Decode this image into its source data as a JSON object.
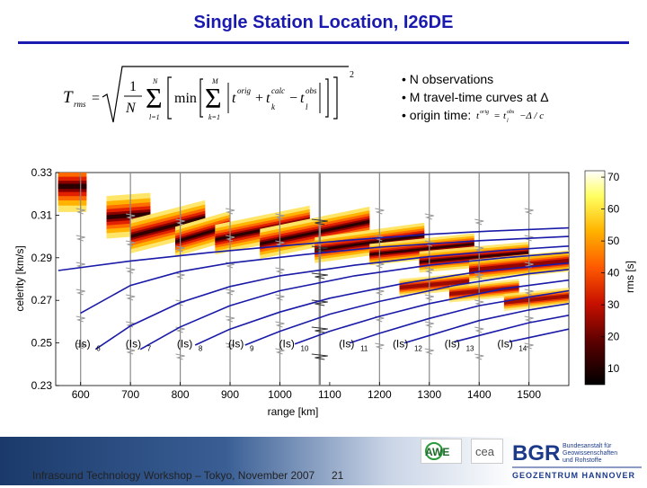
{
  "title": "Single Station Location, I26DE",
  "formula": {
    "lhs_main": "T",
    "lhs_sub": "rms",
    "equals": "=",
    "frac_num": "1",
    "frac_den": "N",
    "sum_outer_top": "N",
    "sum_outer_bottom": "l=1",
    "min_label": "min",
    "sum_inner_top": "M",
    "sum_inner_bottom": "k=1",
    "t": "t",
    "orig": "orig",
    "calc": "calc",
    "obs": "obs",
    "k": "k",
    "l": "l",
    "plus": "+",
    "minus": "−",
    "power": "2"
  },
  "bullets": [
    "• N observations",
    "• M travel-time curves at Δ",
    "• origin time: "
  ],
  "bullet_formula": {
    "t": "t",
    "orig": "orig",
    "eq": "=",
    "obs": "obs",
    "l": "l",
    "rest": "−Δ / c"
  },
  "chart_data": {
    "type": "heatmap",
    "xlabel": "range [km]",
    "ylabel": "celerity [km/s]",
    "xlim": [
      550,
      1580
    ],
    "ylim": [
      0.23,
      0.33
    ],
    "x_ticks": [
      600,
      700,
      800,
      900,
      1000,
      1100,
      1200,
      1300,
      1400,
      1500
    ],
    "y_ticks": [
      0.23,
      0.25,
      0.27,
      0.29,
      0.31,
      0.33
    ],
    "colorbar": {
      "label": "rms [s]",
      "ticks": [
        10,
        20,
        30,
        40,
        50,
        60,
        70
      ],
      "range": [
        5,
        72
      ]
    },
    "phase_labels": [
      {
        "base": "(Is)",
        "sub": "6",
        "x": 610
      },
      {
        "base": "(Is)",
        "sub": "7",
        "x": 712
      },
      {
        "base": "(Is)",
        "sub": "8",
        "x": 815
      },
      {
        "base": "(Is)",
        "sub": "9",
        "x": 918
      },
      {
        "base": "(Is)",
        "sub": "10",
        "x": 1020
      },
      {
        "base": "(Is)",
        "sub": "11",
        "x": 1140
      },
      {
        "base": "(Is)",
        "sub": "12",
        "x": 1248
      },
      {
        "base": "(Is)",
        "sub": "13",
        "x": 1352
      },
      {
        "base": "(Is)",
        "sub": "14",
        "x": 1458
      }
    ],
    "label_y": 0.248,
    "blue_curves": [
      {
        "x": [
          555,
          700,
          860,
          1000,
          1150,
          1300,
          1420,
          1580
        ],
        "y": [
          0.284,
          0.2885,
          0.2925,
          0.2955,
          0.2985,
          0.301,
          0.3025,
          0.304
        ]
      },
      {
        "x": [
          600,
          700,
          800,
          900,
          1050,
          1200,
          1400,
          1580
        ],
        "y": [
          0.264,
          0.277,
          0.2835,
          0.2875,
          0.2915,
          0.295,
          0.298,
          0.3
        ]
      },
      {
        "x": [
          630,
          700,
          800,
          900,
          1000,
          1150,
          1300,
          1450,
          1580
        ],
        "y": [
          0.247,
          0.258,
          0.269,
          0.2765,
          0.2815,
          0.2865,
          0.2905,
          0.2935,
          0.2955
        ]
      },
      {
        "x": [
          720,
          800,
          900,
          1000,
          1150,
          1300,
          1450,
          1580
        ],
        "y": [
          0.247,
          0.2575,
          0.2675,
          0.2745,
          0.2815,
          0.2865,
          0.29,
          0.2925
        ]
      },
      {
        "x": [
          830,
          900,
          1000,
          1100,
          1250,
          1400,
          1580
        ],
        "y": [
          0.249,
          0.2565,
          0.2645,
          0.271,
          0.278,
          0.2835,
          0.2875
        ]
      },
      {
        "x": [
          930,
          1000,
          1100,
          1200,
          1350,
          1500,
          1580
        ],
        "y": [
          0.249,
          0.2555,
          0.2635,
          0.2695,
          0.277,
          0.2825,
          0.2845
        ]
      },
      {
        "x": [
          1030,
          1100,
          1200,
          1300,
          1450,
          1580
        ],
        "y": [
          0.2495,
          0.2555,
          0.2625,
          0.2685,
          0.2755,
          0.2795
        ]
      },
      {
        "x": [
          1140,
          1200,
          1300,
          1400,
          1500,
          1580
        ],
        "y": [
          0.25,
          0.2545,
          0.2615,
          0.2675,
          0.2715,
          0.2745
        ]
      },
      {
        "x": [
          1250,
          1300,
          1400,
          1500,
          1580
        ],
        "y": [
          0.25,
          0.2535,
          0.2605,
          0.2655,
          0.2685
        ]
      },
      {
        "x": [
          1350,
          1400,
          1500,
          1580
        ],
        "y": [
          0.2505,
          0.2535,
          0.2595,
          0.263
        ]
      },
      {
        "x": [
          1460,
          1500,
          1580
        ],
        "y": [
          0.2505,
          0.2525,
          0.2565
        ]
      }
    ],
    "stations_x": [
      600,
      700,
      800,
      900,
      1000,
      1080,
      1200,
      1300,
      1400,
      1500
    ],
    "heat_blobs": [
      {
        "x0": 555,
        "x1": 612,
        "ya": 0.3235,
        "yb": 0.3235,
        "w": 0.012,
        "strength": 1.0
      },
      {
        "x0": 652,
        "x1": 740,
        "ya": 0.309,
        "yb": 0.3105,
        "w": 0.01,
        "strength": 0.95
      },
      {
        "x0": 700,
        "x1": 850,
        "ya": 0.3,
        "yb": 0.309,
        "w": 0.008,
        "strength": 0.9
      },
      {
        "x0": 790,
        "x1": 900,
        "ya": 0.2975,
        "yb": 0.305,
        "w": 0.007,
        "strength": 1.0
      },
      {
        "x0": 870,
        "x1": 1060,
        "ya": 0.2985,
        "yb": 0.3075,
        "w": 0.007,
        "strength": 0.95
      },
      {
        "x0": 960,
        "x1": 1180,
        "ya": 0.2965,
        "yb": 0.307,
        "w": 0.007,
        "strength": 1.0
      },
      {
        "x0": 1070,
        "x1": 1290,
        "ya": 0.2935,
        "yb": 0.3005,
        "w": 0.006,
        "strength": 0.95
      },
      {
        "x0": 1180,
        "x1": 1390,
        "ya": 0.2915,
        "yb": 0.2965,
        "w": 0.005,
        "strength": 0.9
      },
      {
        "x0": 1280,
        "x1": 1500,
        "ya": 0.288,
        "yb": 0.2925,
        "w": 0.005,
        "strength": 0.85
      },
      {
        "x0": 1380,
        "x1": 1580,
        "ya": 0.284,
        "yb": 0.2885,
        "w": 0.005,
        "strength": 0.75
      },
      {
        "x0": 1240,
        "x1": 1380,
        "ya": 0.276,
        "yb": 0.279,
        "w": 0.004,
        "strength": 0.55
      },
      {
        "x0": 1340,
        "x1": 1480,
        "ya": 0.273,
        "yb": 0.276,
        "w": 0.004,
        "strength": 0.5
      },
      {
        "x0": 1450,
        "x1": 1580,
        "ya": 0.269,
        "yb": 0.272,
        "w": 0.004,
        "strength": 0.45
      }
    ]
  },
  "footer": {
    "left_text": "Infrasound Technology Workshop – Tokyo, November 2007",
    "page_number": "21",
    "awe_logo": "AWE",
    "cea_logo": "cea",
    "bgr_logo": "BGR",
    "bgr_line1": "Bundesanstalt für",
    "bgr_line2": "Geowissenschaften",
    "bgr_line3": "und Rohstoffe",
    "bgr_bottom": "GEOZENTRUM HANNOVER"
  }
}
